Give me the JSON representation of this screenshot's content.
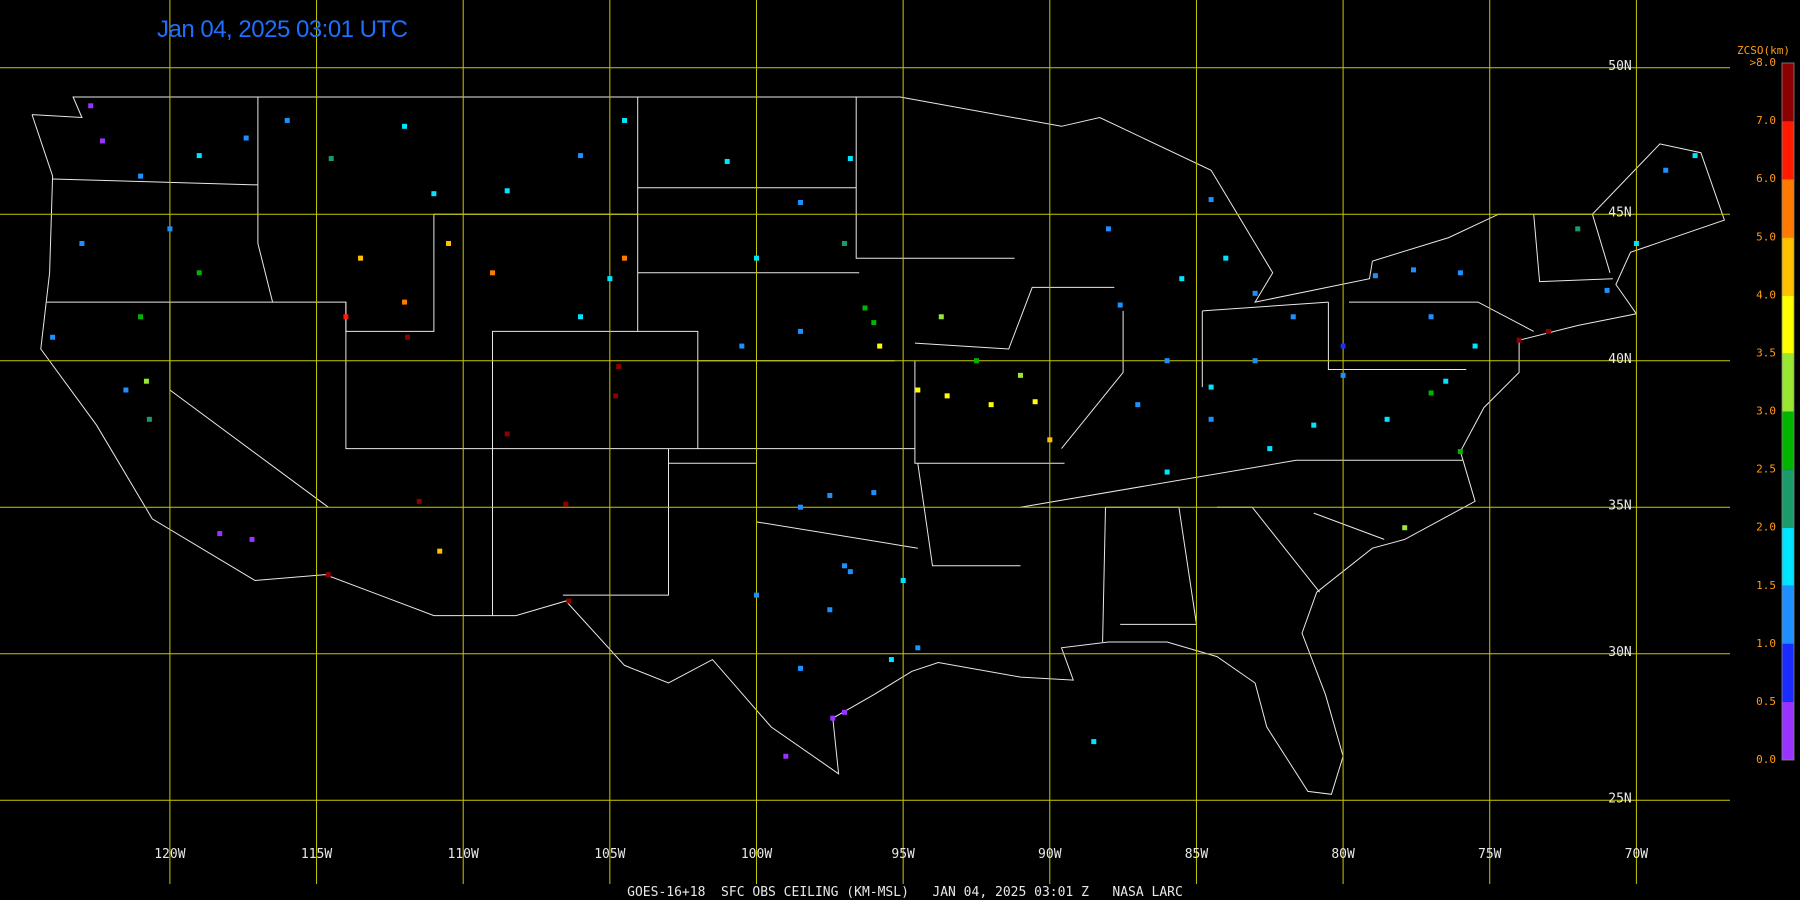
{
  "header": {
    "timestamp": "Jan 04, 2025 03:01 UTC"
  },
  "footer": "GOES-16+18  SFC OBS CEILING (KM-MSL)   JAN 04, 2025 03:01 Z   NASA LARC",
  "map": {
    "grid_color": "#c8c800",
    "lon_ticks": [
      {
        "value": -120,
        "label": "120W"
      },
      {
        "value": -115,
        "label": "115W"
      },
      {
        "value": -110,
        "label": "110W"
      },
      {
        "value": -105,
        "label": "105W"
      },
      {
        "value": -100,
        "label": "100W"
      },
      {
        "value": -95,
        "label": "95W"
      },
      {
        "value": -90,
        "label": "90W"
      },
      {
        "value": -85,
        "label": "85W"
      },
      {
        "value": -80,
        "label": "80W"
      },
      {
        "value": -75,
        "label": "75W"
      },
      {
        "value": -70,
        "label": "70W"
      }
    ],
    "lat_ticks": [
      {
        "value": 50,
        "label": "50N"
      },
      {
        "value": 45,
        "label": "45N"
      },
      {
        "value": 40,
        "label": "40N"
      },
      {
        "value": 35,
        "label": "35N"
      },
      {
        "value": 30,
        "label": "30N"
      },
      {
        "value": 25,
        "label": "25N"
      }
    ]
  },
  "colorbar": {
    "title": "ZCSO(km)",
    "ticks": [
      {
        "value": 0,
        "label": "0.0"
      },
      {
        "value": 0.5,
        "label": "0.5"
      },
      {
        "value": 1,
        "label": "1.0"
      },
      {
        "value": 1.5,
        "label": "1.5"
      },
      {
        "value": 2,
        "label": "2.0"
      },
      {
        "value": 2.5,
        "label": "2.5"
      },
      {
        "value": 3,
        "label": "3.0"
      },
      {
        "value": 3.5,
        "label": "3.5"
      },
      {
        "value": 4,
        "label": "4.0"
      },
      {
        "value": 5,
        "label": "5.0"
      },
      {
        "value": 6,
        "label": "6.0"
      },
      {
        "value": 7,
        "label": "7.0"
      },
      {
        "value": 8,
        "label": ">8.0"
      }
    ],
    "colors": [
      "#9933ff",
      "#1a2cff",
      "#1e8fff",
      "#00e5ff",
      "#1a9c6a",
      "#00b400",
      "#99e633",
      "#ffff00",
      "#ffc000",
      "#ff7a00",
      "#ff1a00",
      "#8b0000"
    ]
  },
  "stations": {
    "lon": [
      -122.3,
      -122.7,
      -121.0,
      -117.4,
      -119.0,
      -116.0,
      -123.0,
      -120.0,
      -119.0,
      -121.0,
      -121.5,
      -120.8,
      -118.3,
      -117.2,
      -120.7,
      -124.0,
      -114.5,
      -111.0,
      -108.5,
      -106.0,
      -112.0,
      -104.5,
      -113.5,
      -112.0,
      -110.5,
      -109.0,
      -106.0,
      -105.0,
      -104.5,
      -111.9,
      -114.0,
      -104.7,
      -104.8,
      -108.5,
      -106.5,
      -111.5,
      -110.8,
      -106.4,
      -114.6,
      -101.0,
      -98.5,
      -97.0,
      -100.0,
      -96.8,
      -98.5,
      -100.5,
      -96.0,
      -94.5,
      -93.5,
      -92.0,
      -90.5,
      -93.7,
      -95.8,
      -91.0,
      -90.0,
      -96.3,
      -92.5,
      -97.5,
      -98.5,
      -96.0,
      -97.0,
      -96.8,
      -97.5,
      -98.5,
      -95.4,
      -97.0,
      -97.4,
      -99.0,
      -94.5,
      -95.0,
      -100.0,
      -88.5,
      -88.0,
      -84.5,
      -83.0,
      -85.5,
      -84.0,
      -87.6,
      -86.0,
      -83.0,
      -84.5,
      -81.7,
      -80.0,
      -78.9,
      -77.6,
      -76.0,
      -77.0,
      -75.5,
      -74.0,
      -73.0,
      -71.0,
      -72.0,
      -70.0,
      -69.0,
      -68.0,
      -77.0,
      -76.5,
      -78.5,
      -81.0,
      -77.9,
      -76.0,
      -86.0,
      -82.5,
      -84.5,
      -80.0,
      -87.0
    ],
    "lat": [
      47.5,
      48.7,
      46.3,
      47.6,
      47.0,
      48.2,
      44.0,
      44.5,
      43.0,
      41.5,
      39.0,
      39.3,
      34.1,
      33.9,
      38.0,
      40.8,
      46.9,
      45.7,
      45.8,
      47.0,
      48.0,
      48.2,
      43.5,
      42.0,
      44.0,
      43.0,
      41.5,
      42.8,
      43.5,
      40.8,
      41.5,
      39.8,
      38.8,
      37.5,
      35.1,
      35.2,
      33.5,
      31.8,
      32.7,
      46.8,
      45.4,
      44.0,
      43.5,
      46.9,
      41.0,
      40.5,
      41.3,
      39.0,
      38.8,
      38.5,
      38.6,
      41.5,
      40.5,
      39.5,
      37.3,
      41.8,
      40.0,
      35.4,
      35.0,
      35.5,
      33.0,
      32.8,
      31.5,
      29.5,
      29.8,
      28.0,
      27.8,
      26.5,
      30.2,
      32.5,
      32.0,
      27.0,
      44.5,
      45.5,
      42.3,
      42.8,
      43.5,
      41.9,
      40.0,
      40.0,
      39.1,
      41.5,
      40.5,
      42.9,
      43.1,
      43.0,
      41.5,
      40.5,
      40.7,
      41.0,
      42.4,
      44.5,
      44.0,
      46.5,
      47.0,
      38.9,
      39.3,
      38.0,
      37.8,
      34.3,
      36.9,
      36.2,
      37.0,
      38.0,
      39.5,
      38.5
    ],
    "ceiling": [
      0.3,
      0.3,
      1.0,
      1.2,
      1.8,
      1.2,
      1.2,
      1.0,
      2.6,
      2.6,
      1.0,
      3.2,
      0.3,
      0.3,
      2.4,
      1.0,
      2.4,
      1.8,
      1.8,
      1.2,
      1.8,
      1.5,
      4.5,
      5.5,
      4.5,
      5.5,
      1.5,
      1.5,
      5.5,
      7.5,
      6.5,
      7.5,
      7.5,
      7.5,
      7.5,
      7.2,
      4.5,
      7.5,
      7.5,
      1.5,
      1.2,
      2.4,
      1.5,
      1.8,
      1.2,
      1.2,
      2.6,
      3.6,
      3.7,
      3.8,
      3.7,
      3.2,
      3.5,
      3.3,
      4.2,
      2.8,
      2.6,
      1.2,
      1.2,
      1.0,
      1.3,
      1.4,
      1.2,
      1.2,
      1.6,
      0.3,
      0.4,
      0.3,
      1.3,
      1.8,
      1.2,
      1.8,
      1.2,
      1.2,
      1.2,
      1.5,
      1.8,
      1.2,
      1.2,
      1.2,
      1.5,
      1.0,
      0.8,
      1.2,
      1.2,
      1.0,
      1.2,
      1.5,
      7.5,
      7.0,
      1.2,
      2.4,
      1.8,
      1.2,
      1.5,
      2.6,
      1.8,
      1.5,
      1.8,
      3.2,
      2.6,
      1.8,
      1.6,
      1.0,
      1.0,
      1.0
    ]
  }
}
